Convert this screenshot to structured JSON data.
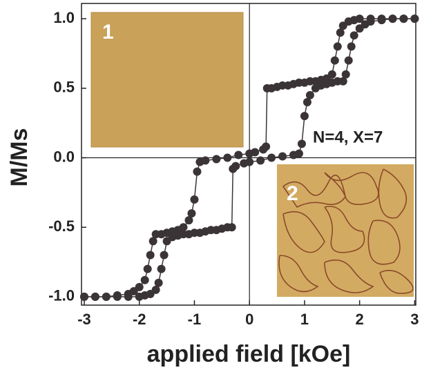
{
  "chart_data": {
    "type": "scatter",
    "xlabel": "applied field [kOe]",
    "ylabel": "M/Ms",
    "annotations": [
      "N=4, X=7",
      "1",
      "2"
    ],
    "xlim": [
      -3.05,
      3.02
    ],
    "ylim": [
      -1.06,
      1.11
    ],
    "xticks": [
      -3,
      -2,
      -1,
      0,
      1,
      2,
      3
    ],
    "yticks": [
      {
        "value": -1.0,
        "label": "-1.0"
      },
      {
        "value": -0.5,
        "label": "-0.5"
      },
      {
        "value": 0.0,
        "label": "0.0"
      },
      {
        "value": 0.5,
        "label": "0.5"
      },
      {
        "value": 1.0,
        "label": "1.0"
      }
    ],
    "series": [
      {
        "color": "#3b3437",
        "x": [
          3.0,
          2.8,
          2.6,
          2.4,
          2.2,
          2.0,
          1.9,
          1.8,
          1.7,
          1.65,
          1.6,
          1.55,
          1.5,
          1.4,
          1.3,
          1.2,
          1.1,
          1.0,
          0.9,
          0.8,
          0.7,
          0.6,
          0.5,
          0.4,
          0.32,
          0.3,
          0.25,
          0.1,
          0.0,
          -0.2,
          -0.4,
          -0.6,
          -0.8,
          -0.9,
          -0.95,
          -1.0,
          -1.05,
          -1.1,
          -1.2,
          -1.3,
          -1.4,
          -1.5,
          -1.6,
          -1.7,
          -1.75,
          -1.8,
          -1.85,
          -1.9,
          -2.0,
          -2.1,
          -2.2,
          -2.4,
          -2.6,
          -2.8,
          -3.0
        ],
        "values": [
          1.0,
          1.0,
          1.0,
          1.0,
          1.0,
          1.0,
          0.99,
          0.98,
          0.95,
          0.9,
          0.8,
          0.7,
          0.6,
          0.57,
          0.56,
          0.55,
          0.55,
          0.54,
          0.54,
          0.53,
          0.52,
          0.52,
          0.51,
          0.5,
          0.5,
          0.08,
          0.06,
          0.04,
          0.03,
          0.02,
          0.0,
          -0.01,
          -0.02,
          -0.03,
          -0.1,
          -0.3,
          -0.4,
          -0.45,
          -0.5,
          -0.52,
          -0.53,
          -0.54,
          -0.55,
          -0.55,
          -0.6,
          -0.7,
          -0.8,
          -0.88,
          -0.93,
          -0.96,
          -0.98,
          -0.99,
          -1.0,
          -1.0,
          -1.0
        ]
      },
      {
        "color": "#3b3437",
        "x": [
          -3.0,
          -2.8,
          -2.6,
          -2.4,
          -2.2,
          -2.0,
          -1.9,
          -1.8,
          -1.7,
          -1.65,
          -1.6,
          -1.55,
          -1.5,
          -1.4,
          -1.3,
          -1.2,
          -1.1,
          -1.0,
          -0.9,
          -0.8,
          -0.7,
          -0.6,
          -0.5,
          -0.4,
          -0.32,
          -0.3,
          -0.25,
          -0.1,
          0.0,
          0.2,
          0.4,
          0.6,
          0.8,
          0.9,
          0.95,
          1.0,
          1.05,
          1.1,
          1.2,
          1.3,
          1.4,
          1.5,
          1.6,
          1.7,
          1.75,
          1.8,
          1.85,
          1.9,
          2.0,
          2.1,
          2.2,
          2.4,
          2.6,
          2.8,
          3.0
        ],
        "values": [
          -1.0,
          -1.0,
          -1.0,
          -1.0,
          -1.0,
          -1.0,
          -0.99,
          -0.98,
          -0.95,
          -0.9,
          -0.8,
          -0.7,
          -0.6,
          -0.57,
          -0.56,
          -0.55,
          -0.55,
          -0.54,
          -0.54,
          -0.53,
          -0.52,
          -0.52,
          -0.51,
          -0.5,
          -0.5,
          -0.08,
          -0.06,
          -0.04,
          -0.03,
          -0.02,
          0.0,
          0.01,
          0.02,
          0.03,
          0.1,
          0.3,
          0.4,
          0.45,
          0.5,
          0.52,
          0.53,
          0.54,
          0.55,
          0.55,
          0.6,
          0.7,
          0.8,
          0.88,
          0.93,
          0.96,
          0.98,
          0.99,
          1.0,
          1.0,
          1.0
        ]
      }
    ]
  }
}
